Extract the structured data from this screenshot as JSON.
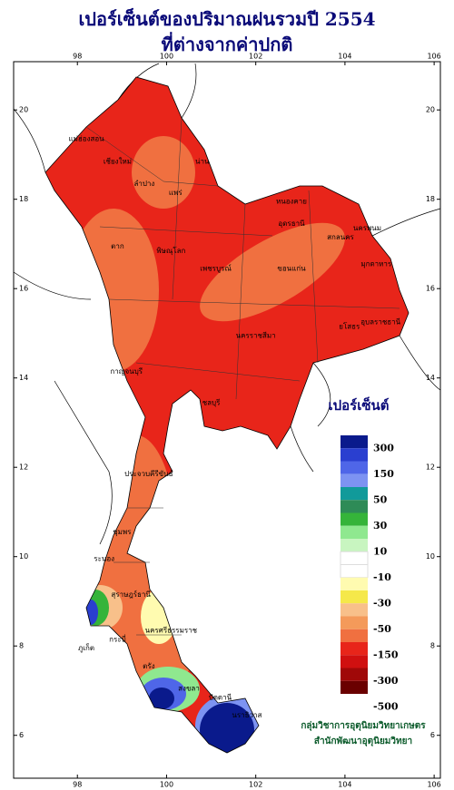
{
  "title": [
    "เปอร์เซ็นต์ของปริมาณฝนรวมปี 2554",
    "ที่ต่างจากค่าปกติ"
  ],
  "map": {
    "lon_range": [
      96.57,
      106.14
    ],
    "lat_range": [
      5.04,
      21.08
    ],
    "lon_ticks": [
      98,
      100,
      102,
      104,
      106
    ],
    "lat_ticks": [
      6,
      8,
      10,
      12,
      14,
      16,
      18,
      20
    ],
    "provinces": [
      "แม่ฮ่องสอน",
      "เชียงใหม่",
      "ลำปาง",
      "น่าน",
      "แพร่",
      "หนองคาย",
      "อุดรธานี",
      "นครพนม",
      "สกลนคร",
      "มุกดาหาร",
      "ขอนแก่น",
      "ตาก",
      "พิษณุโลก",
      "เพชรบูรณ์",
      "นครราชสีมา",
      "อุบลราชธานี",
      "ยโสธร",
      "กาญจนบุรี",
      "ชลบุรี",
      "ประจวบคีรีขันธ์",
      "ชุมพร",
      "ระนอง",
      "สุราษฎร์ธานี",
      "นครศรีธรรมราช",
      "กระบี่",
      "ภูเก็ต",
      "ตรัง",
      "สงขลา",
      "ปัตตานี",
      "นราธิวาส"
    ]
  },
  "legend": {
    "title": "เปอร์เซ็นต์",
    "colors": [
      "#0a1a8c",
      "#2a3fd0",
      "#4f66e8",
      "#7d93f2",
      "#119a9a",
      "#2e8b57",
      "#35b43a",
      "#8fe88f",
      "#c8f5c0",
      "#ffffff",
      "#ffffff",
      "#fffbb0",
      "#f5e84a",
      "#f8c08a",
      "#f49a5a",
      "#f07040",
      "#e8251a",
      "#d01010",
      "#a00808",
      "#6a0000"
    ],
    "labels": [
      "300",
      "150",
      "50",
      "30",
      "10",
      "-10",
      "-30",
      "-50",
      "-150",
      "-300",
      "-500"
    ]
  },
  "credit": [
    "กลุ่มวิชาการอุตุนิยมวิทยาเกษตร",
    "สำนักพัฒนาอุตุนิยมวิทยา"
  ]
}
